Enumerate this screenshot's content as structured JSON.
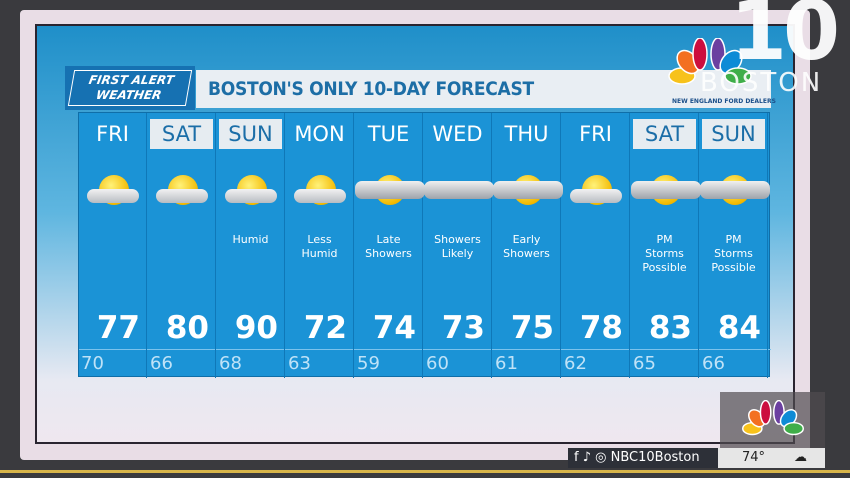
{
  "branding": {
    "logo_line1": "FIRST ALERT",
    "logo_line2": "WEATHER",
    "station_number": "10",
    "station_city": "BOSTON",
    "sponsor": "NEW ENGLAND FORD DEALERS"
  },
  "title": "BOSTON'S ONLY 10-DAY FORECAST",
  "days": [
    {
      "day": "FRI",
      "weekend": false,
      "icon": "partly-sunny",
      "condition": "",
      "high": "77",
      "low": "70"
    },
    {
      "day": "SAT",
      "weekend": true,
      "icon": "partly-sunny",
      "condition": "",
      "high": "80",
      "low": "66"
    },
    {
      "day": "SUN",
      "weekend": true,
      "icon": "partly-sunny",
      "condition": "Humid",
      "high": "90",
      "low": "68"
    },
    {
      "day": "MON",
      "weekend": false,
      "icon": "partly-sunny",
      "condition": "Less Humid",
      "high": "72",
      "low": "63"
    },
    {
      "day": "TUE",
      "weekend": false,
      "icon": "sun-showers",
      "condition": "Late Showers",
      "high": "74",
      "low": "59"
    },
    {
      "day": "WED",
      "weekend": false,
      "icon": "showers",
      "condition": "Showers Likely",
      "high": "73",
      "low": "60"
    },
    {
      "day": "THU",
      "weekend": false,
      "icon": "sun-showers",
      "condition": "Early Showers",
      "high": "75",
      "low": "61"
    },
    {
      "day": "FRI",
      "weekend": false,
      "icon": "partly-sunny",
      "condition": "",
      "high": "78",
      "low": "62"
    },
    {
      "day": "SAT",
      "weekend": true,
      "icon": "sun-storms",
      "condition": "PM Storms Possible",
      "high": "83",
      "low": "65"
    },
    {
      "day": "SUN",
      "weekend": true,
      "icon": "sun-storms",
      "condition": "PM Storms Possible",
      "high": "84",
      "low": "66"
    }
  ],
  "footer": {
    "social_handle": "NBC10Boston",
    "current_temp": "74°",
    "current_icon": "partly-cloudy-night"
  },
  "colors": {
    "board": "#1b93d6",
    "title_text": "#1d6ea6",
    "weekend_label_bg": "#e6ecf1"
  }
}
